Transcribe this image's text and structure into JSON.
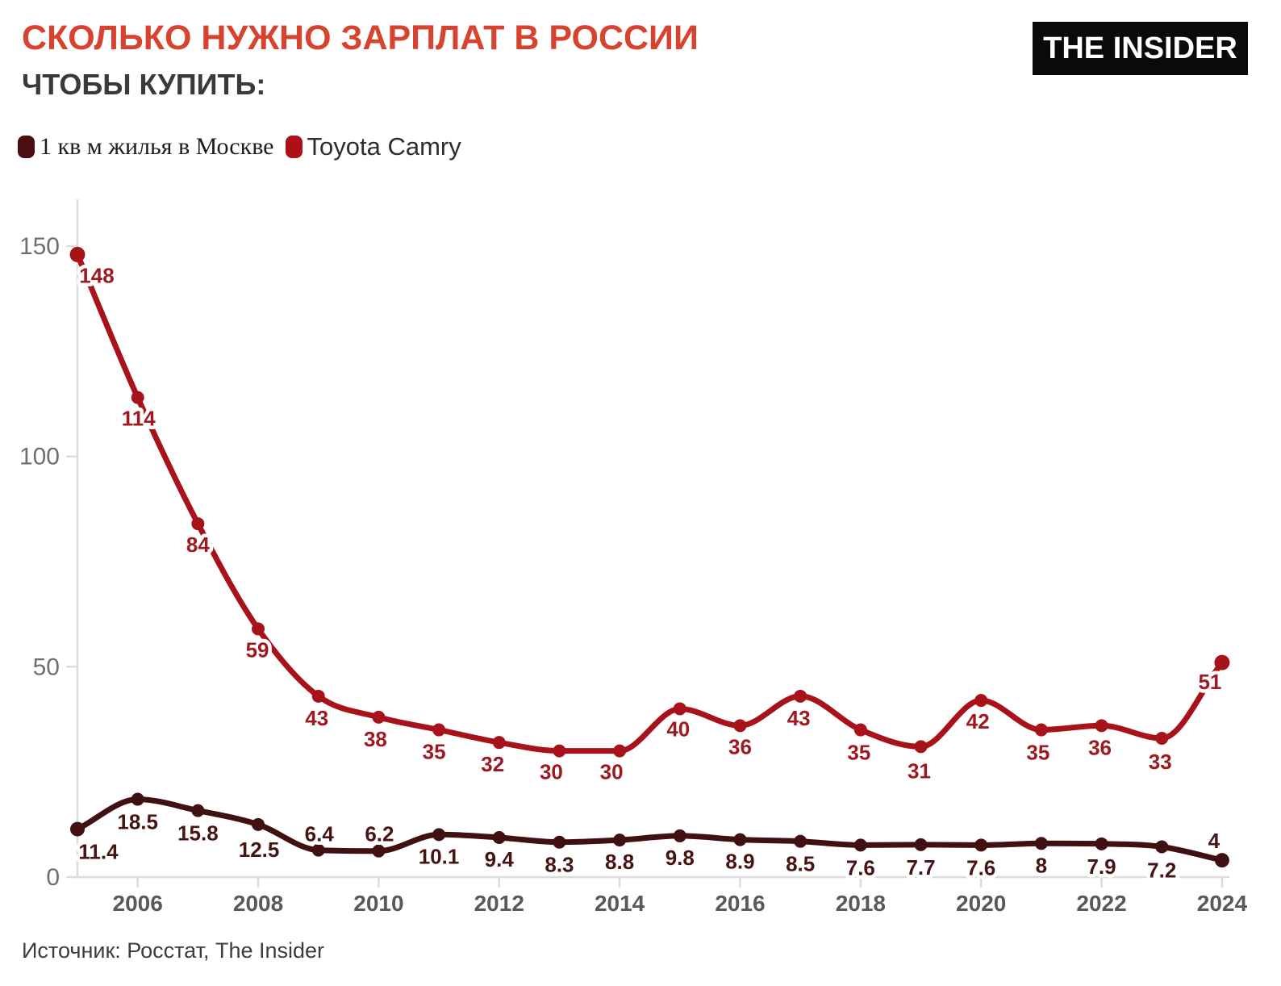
{
  "header": {
    "title": "СКОЛЬКО НУЖНО ЗАРПЛАТ В РОССИИ",
    "subtitle": "ЧТОБЫ КУПИТЬ:",
    "logo": "THE INSIDER"
  },
  "legend": [
    {
      "label": "1 кв м жилья в Москве",
      "color": "#4a0e10"
    },
    {
      "label": "Toyota Camry",
      "color": "#ad1016"
    }
  ],
  "footer": {
    "source": "Источник: Росстат, The Insider"
  },
  "colors": {
    "title": "#d8432f",
    "subtitle": "#3a3a3a",
    "axis_line": "#dcdcdc",
    "axis_label": "#6e6e6e",
    "year_label": "#595959",
    "source_text": "#3c3c3c",
    "logo_bg": "#0a0a0a",
    "logo_text": "#ffffff",
    "background": "#ffffff"
  },
  "chart_data": {
    "type": "line",
    "title": "Сколько нужно зарплат в России, чтобы купить",
    "xlabel": "",
    "ylabel": "",
    "x": [
      2005,
      2006,
      2007,
      2008,
      2009,
      2010,
      2011,
      2012,
      2013,
      2014,
      2015,
      2016,
      2017,
      2018,
      2019,
      2020,
      2021,
      2022,
      2023,
      2024
    ],
    "x_ticks": [
      2006,
      2008,
      2010,
      2012,
      2014,
      2016,
      2018,
      2020,
      2022,
      2024
    ],
    "yticks": [
      0,
      50,
      100,
      150
    ],
    "ylim": [
      0,
      160
    ],
    "grid": false,
    "legend_position": "top-left",
    "series": [
      {
        "name": "1 кв м жилья в Москве",
        "color": "#401110",
        "label_color": "#461413",
        "values": [
          11.4,
          18.5,
          15.8,
          12.5,
          6.4,
          6.2,
          10.1,
          9.4,
          8.3,
          8.8,
          9.8,
          8.9,
          8.5,
          7.6,
          7.7,
          7.6,
          8,
          7.9,
          7.2,
          4
        ],
        "point_labels": [
          "11.4",
          "18.5",
          "15.8",
          "12.5",
          "6.4",
          "6.2",
          "10.1",
          "9.4",
          "8.3",
          "8.8",
          "9.8",
          "8.9",
          "8.5",
          "7.6",
          "7.7",
          "7.6",
          "8",
          "7.9",
          "7.2",
          "4"
        ],
        "label_offsets": [
          [
            26,
            28
          ],
          [
            0,
            28
          ],
          [
            0,
            28
          ],
          [
            1,
            31
          ],
          [
            1,
            -20
          ],
          [
            1,
            -21
          ],
          [
            0,
            27
          ],
          [
            0,
            27
          ],
          [
            0,
            28
          ],
          [
            0,
            27
          ],
          [
            0,
            27
          ],
          [
            0,
            27
          ],
          [
            0,
            28
          ],
          [
            0,
            28
          ],
          [
            0,
            28
          ],
          [
            0,
            28
          ],
          [
            0,
            27
          ],
          [
            0,
            28
          ],
          [
            0,
            29
          ],
          [
            -10,
            -24
          ]
        ]
      },
      {
        "name": "Toyota Camry",
        "color": "#a8121a",
        "label_color": "#9e1a20",
        "values": [
          148,
          114,
          84,
          59,
          43,
          38,
          35,
          32,
          30,
          30,
          40,
          36,
          43,
          35,
          31,
          42,
          35,
          36,
          33,
          51
        ],
        "point_labels": [
          "148",
          "114",
          "84",
          "59",
          "43",
          "38",
          "35",
          "32",
          "30",
          "30",
          "40",
          "36",
          "43",
          "35",
          "31",
          "42",
          "35",
          "36",
          "33",
          "51"
        ],
        "label_offsets": [
          [
            24,
            26
          ],
          [
            1,
            26
          ],
          [
            0,
            26
          ],
          [
            -1,
            26
          ],
          [
            -2,
            27
          ],
          [
            -4,
            27
          ],
          [
            -6,
            27
          ],
          [
            -8,
            27
          ],
          [
            -10,
            26
          ],
          [
            -10,
            26
          ],
          [
            -2,
            25
          ],
          [
            0,
            26
          ],
          [
            -2,
            27
          ],
          [
            -2,
            28
          ],
          [
            -2,
            30
          ],
          [
            -4,
            26
          ],
          [
            -4,
            28
          ],
          [
            -2,
            27
          ],
          [
            -2,
            29
          ],
          [
            -15,
            24
          ]
        ]
      }
    ]
  }
}
